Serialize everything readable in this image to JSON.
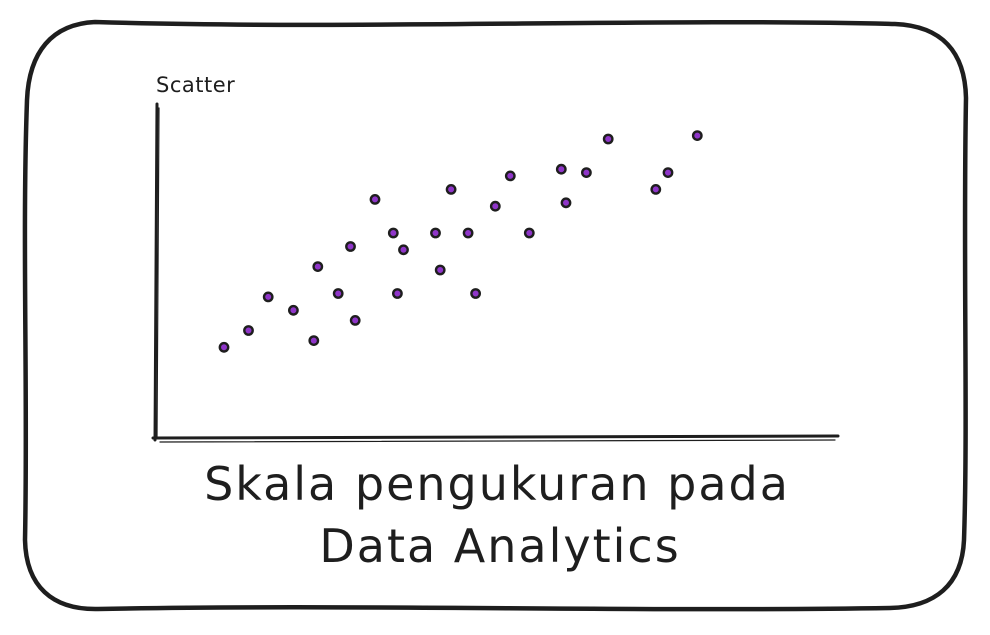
{
  "chart_data": {
    "type": "scatter",
    "title": "Scatter",
    "xlabel": "",
    "ylabel": "",
    "xlim": [
      0,
      100
    ],
    "ylim": [
      0,
      100
    ],
    "grid": false,
    "legend": "none",
    "point_color": "#8f35c9",
    "outline_color": "#1e1e1e",
    "points": [
      {
        "x": 10,
        "y": 27
      },
      {
        "x": 13.6,
        "y": 32
      },
      {
        "x": 16.5,
        "y": 42
      },
      {
        "x": 20.2,
        "y": 38
      },
      {
        "x": 23.2,
        "y": 29
      },
      {
        "x": 23.8,
        "y": 51
      },
      {
        "x": 26.8,
        "y": 43
      },
      {
        "x": 28.6,
        "y": 57
      },
      {
        "x": 29.3,
        "y": 35
      },
      {
        "x": 32.2,
        "y": 71
      },
      {
        "x": 34.9,
        "y": 61
      },
      {
        "x": 35.5,
        "y": 43
      },
      {
        "x": 36.4,
        "y": 56
      },
      {
        "x": 41.1,
        "y": 61
      },
      {
        "x": 41.8,
        "y": 50
      },
      {
        "x": 43.4,
        "y": 74
      },
      {
        "x": 45.9,
        "y": 61
      },
      {
        "x": 47,
        "y": 43
      },
      {
        "x": 49.9,
        "y": 69
      },
      {
        "x": 52.1,
        "y": 78
      },
      {
        "x": 54.9,
        "y": 61
      },
      {
        "x": 59.6,
        "y": 80
      },
      {
        "x": 60.3,
        "y": 70
      },
      {
        "x": 63.3,
        "y": 79
      },
      {
        "x": 66.5,
        "y": 89
      },
      {
        "x": 73.5,
        "y": 74
      },
      {
        "x": 75.3,
        "y": 79
      },
      {
        "x": 79.6,
        "y": 90
      }
    ]
  },
  "caption": {
    "line1": "Skala pengukuran pada",
    "line2": "Data Analytics"
  },
  "colors": {
    "stroke": "#1e1e1e",
    "background": "#ffffff"
  }
}
